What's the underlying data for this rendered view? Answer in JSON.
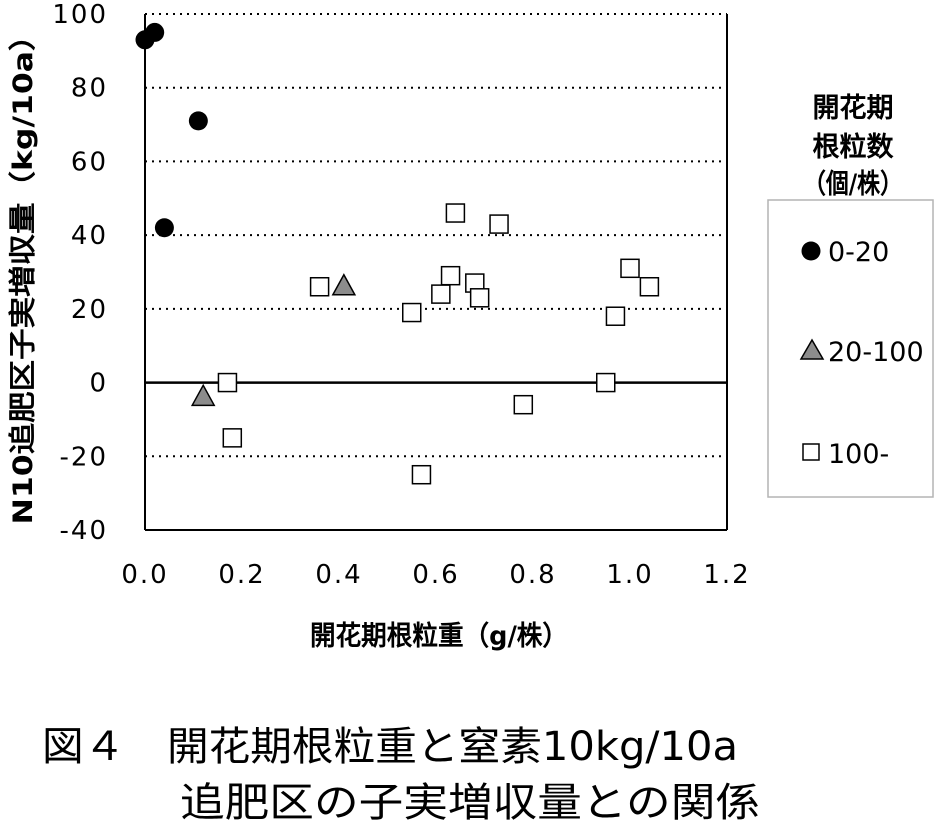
{
  "chart_data": {
    "type": "scatter",
    "title": "",
    "xlabel": "開花期根粒重（g/株）",
    "ylabel": "N10追肥区子実増収量（kg/10a）",
    "xlim": [
      0,
      1.2
    ],
    "ylim": [
      -40,
      100
    ],
    "xticks": [
      "0.0",
      "0.2",
      "0.4",
      "0.6",
      "0.8",
      "1.0",
      "1.2"
    ],
    "yticks": [
      "100",
      "80",
      "60",
      "40",
      "20",
      "0",
      "-20",
      "-40"
    ],
    "grid": true,
    "legend": {
      "title": [
        "開花期",
        "根粒数",
        "（個/株）"
      ],
      "placement": "right"
    },
    "series": [
      {
        "name": "0-20",
        "marker": "circle",
        "color": "#000000",
        "points": [
          [
            0.0,
            93
          ],
          [
            0.02,
            95
          ],
          [
            0.11,
            71
          ],
          [
            0.04,
            42
          ]
        ]
      },
      {
        "name": "20-100",
        "marker": "triangle",
        "color": "#8c8c8c",
        "points": [
          [
            0.41,
            26
          ],
          [
            0.12,
            -4
          ]
        ]
      },
      {
        "name": "100-",
        "marker": "square",
        "color": "#ffffff",
        "points": [
          [
            0.36,
            26
          ],
          [
            0.17,
            0
          ],
          [
            0.18,
            -15
          ],
          [
            0.55,
            19
          ],
          [
            0.57,
            -25
          ],
          [
            0.61,
            24
          ],
          [
            0.63,
            29
          ],
          [
            0.64,
            46
          ],
          [
            0.68,
            27
          ],
          [
            0.69,
            23
          ],
          [
            0.73,
            43
          ],
          [
            0.78,
            -6
          ],
          [
            0.95,
            0
          ],
          [
            0.97,
            18
          ],
          [
            1.0,
            31
          ],
          [
            1.04,
            26
          ]
        ]
      }
    ]
  },
  "caption": {
    "line1": "図４　開花期根粒重と窒素10kg/10a",
    "line2": "追肥区の子実増収量との関係"
  }
}
